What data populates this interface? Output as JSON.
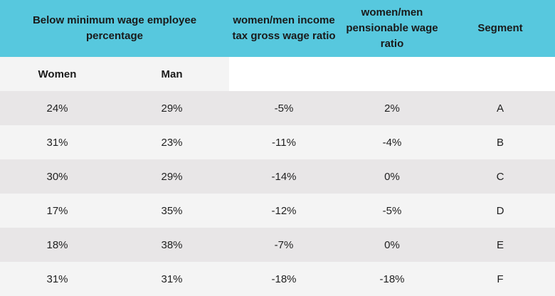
{
  "header": {
    "below_min_wage": "Below minimum wage employee percentage",
    "income_tax_ratio": "women/men income tax gross wage ratio",
    "pensionable_ratio": "women/men pensionable wage ratio",
    "segment": "Segment"
  },
  "subheader": {
    "women": "Women",
    "man": "Man"
  },
  "rows": [
    {
      "women": "24%",
      "man": "29%",
      "income_tax": "-5%",
      "pensionable": "2%",
      "segment": "A"
    },
    {
      "women": "31%",
      "man": "23%",
      "income_tax": "-11%",
      "pensionable": "-4%",
      "segment": "B"
    },
    {
      "women": "30%",
      "man": "29%",
      "income_tax": "-14%",
      "pensionable": "0%",
      "segment": "C"
    },
    {
      "women": "17%",
      "man": "35%",
      "income_tax": "-12%",
      "pensionable": "-5%",
      "segment": "D"
    },
    {
      "women": "18%",
      "man": "38%",
      "income_tax": "-7%",
      "pensionable": "0%",
      "segment": "E"
    },
    {
      "women": "31%",
      "man": "31%",
      "income_tax": "-18%",
      "pensionable": "-18%",
      "segment": "F"
    }
  ],
  "colors": {
    "header_bg": "#57c8de",
    "row_odd": "#e8e6e7",
    "row_even": "#f4f4f4"
  }
}
